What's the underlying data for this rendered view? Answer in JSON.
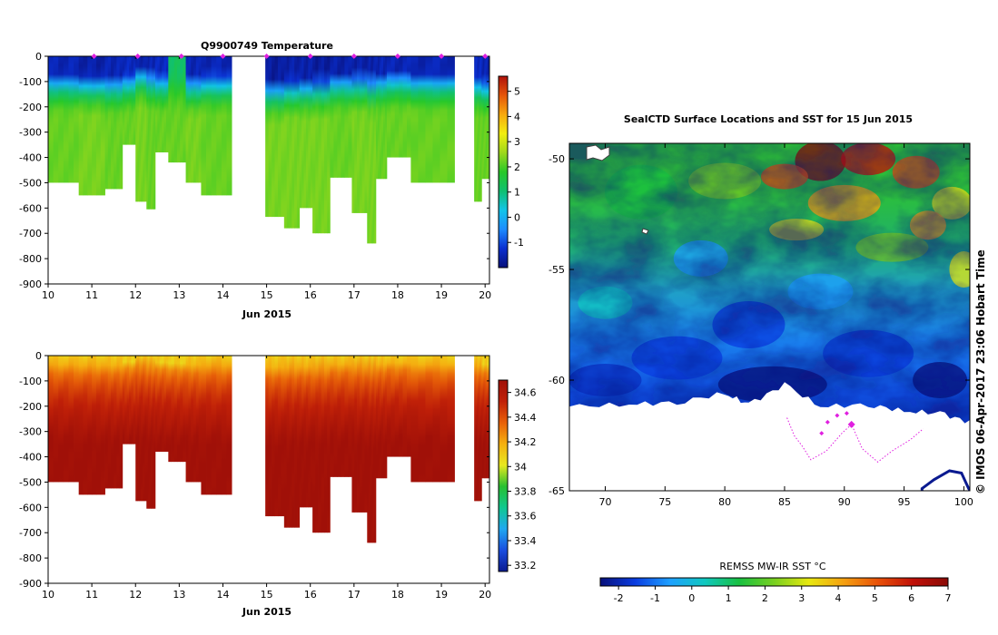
{
  "colors": {
    "temperature_scale": [
      "#08107a",
      "#0a2fd0",
      "#1e8cff",
      "#11c4e8",
      "#10c070",
      "#28c828",
      "#9ed81c",
      "#f2ee10",
      "#f7a90e",
      "#e6560a",
      "#b0120a"
    ],
    "salinity_scale": [
      "#0a1a90",
      "#1a4ee0",
      "#20a8f0",
      "#10c890",
      "#28c030",
      "#e8e820",
      "#f5b010",
      "#e86008",
      "#c02008",
      "#a01008"
    ],
    "sst_scale": [
      "#08107a",
      "#0a3ce0",
      "#1ea0ff",
      "#10c8c0",
      "#18c040",
      "#78d020",
      "#e8e810",
      "#f5a010",
      "#e85008",
      "#c01008",
      "#8a0a06"
    ],
    "profile_marker": "#e020e0"
  },
  "chart_data": [
    {
      "type": "heatmap",
      "title": "Q9900749  Temperature",
      "xlabel": "Jun 2015",
      "ylabel": "",
      "xlim": [
        10,
        20.1
      ],
      "ylim": [
        -900,
        0
      ],
      "x_ticks": [
        10,
        11,
        12,
        13,
        14,
        15,
        16,
        17,
        18,
        19,
        20
      ],
      "y_ticks": [
        0,
        -100,
        -200,
        -300,
        -400,
        -500,
        -600,
        -700,
        -800,
        -900
      ],
      "x_tick_labels": [
        "10",
        "11",
        "12",
        "13",
        "14",
        "15",
        "16",
        "17",
        "18",
        "19",
        "20"
      ],
      "y_tick_labels": [
        "0",
        "-100",
        "-200",
        "-300",
        "-400",
        "-500",
        "-600",
        "-700",
        "-800",
        "-900"
      ],
      "colorbar": {
        "range": [
          -2,
          5.6
        ],
        "ticks": [
          -1,
          0,
          1,
          2,
          3,
          4,
          5
        ],
        "labels": [
          "-1",
          "0",
          "1",
          "2",
          "3",
          "4",
          "5"
        ]
      },
      "profile_markers_days": [
        11.05,
        12.05,
        13.05,
        14.0,
        15.0,
        16.0,
        17.0,
        18.0,
        19.0,
        20.0
      ],
      "gaps_days": [
        [
          14.2,
          14.97
        ],
        [
          19.3,
          19.75
        ]
      ],
      "profiles": [
        {
          "x0": 10.0,
          "x1": 10.7,
          "max_depth": 500,
          "surface": -1.5,
          "mix_depth": 70,
          "deep": 2.2
        },
        {
          "x0": 10.7,
          "x1": 11.3,
          "max_depth": 550,
          "surface": -1.6,
          "mix_depth": 75,
          "deep": 2.3
        },
        {
          "x0": 11.3,
          "x1": 11.7,
          "max_depth": 525,
          "surface": -1.5,
          "mix_depth": 80,
          "deep": 2.2
        },
        {
          "x0": 11.7,
          "x1": 12.0,
          "max_depth": 350,
          "surface": -1.4,
          "mix_depth": 70,
          "deep": 2.2
        },
        {
          "x0": 12.0,
          "x1": 12.25,
          "max_depth": 575,
          "surface": -1.6,
          "mix_depth": 40,
          "deep": 2.3
        },
        {
          "x0": 12.25,
          "x1": 12.45,
          "max_depth": 605,
          "surface": -1.5,
          "mix_depth": 60,
          "deep": 2.2
        },
        {
          "x0": 12.45,
          "x1": 12.75,
          "max_depth": 380,
          "surface": -1.4,
          "mix_depth": 70,
          "deep": 2.2
        },
        {
          "x0": 12.75,
          "x1": 13.15,
          "max_depth": 420,
          "surface": 1.2,
          "mix_depth": 80,
          "deep": 2.2
        },
        {
          "x0": 13.15,
          "x1": 13.5,
          "max_depth": 500,
          "surface": -1.5,
          "mix_depth": 80,
          "deep": 2.3
        },
        {
          "x0": 13.5,
          "x1": 14.2,
          "max_depth": 550,
          "surface": -1.5,
          "mix_depth": 70,
          "deep": 2.2
        },
        {
          "x0": 14.97,
          "x1": 15.4,
          "max_depth": 635,
          "surface": -1.7,
          "mix_depth": 100,
          "deep": 2.3
        },
        {
          "x0": 15.4,
          "x1": 15.75,
          "max_depth": 680,
          "surface": -1.6,
          "mix_depth": 90,
          "deep": 2.3
        },
        {
          "x0": 15.75,
          "x1": 16.05,
          "max_depth": 600,
          "surface": -1.6,
          "mix_depth": 90,
          "deep": 2.3
        },
        {
          "x0": 16.05,
          "x1": 16.45,
          "max_depth": 700,
          "surface": -1.7,
          "mix_depth": 85,
          "deep": 2.3
        },
        {
          "x0": 16.45,
          "x1": 16.95,
          "max_depth": 480,
          "surface": -1.6,
          "mix_depth": 70,
          "deep": 2.2
        },
        {
          "x0": 16.95,
          "x1": 17.3,
          "max_depth": 620,
          "surface": -1.6,
          "mix_depth": 70,
          "deep": 2.3
        },
        {
          "x0": 17.3,
          "x1": 17.5,
          "max_depth": 740,
          "surface": -1.6,
          "mix_depth": 80,
          "deep": 2.3
        },
        {
          "x0": 17.5,
          "x1": 17.75,
          "max_depth": 485,
          "surface": -1.5,
          "mix_depth": 70,
          "deep": 2.2
        },
        {
          "x0": 17.75,
          "x1": 18.3,
          "max_depth": 400,
          "surface": -1.5,
          "mix_depth": 60,
          "deep": 2.2
        },
        {
          "x0": 18.3,
          "x1": 19.3,
          "max_depth": 500,
          "surface": -1.5,
          "mix_depth": 70,
          "deep": 2.2
        },
        {
          "x0": 19.75,
          "x1": 19.92,
          "max_depth": 575,
          "surface": -1.4,
          "mix_depth": 80,
          "deep": 2.2
        },
        {
          "x0": 19.92,
          "x1": 20.1,
          "max_depth": 485,
          "surface": -1.5,
          "mix_depth": 90,
          "deep": 2.2
        }
      ]
    },
    {
      "type": "heatmap",
      "title": "",
      "xlabel": "Jun 2015",
      "ylabel": "",
      "xlim": [
        10,
        20.1
      ],
      "ylim": [
        -900,
        0
      ],
      "x_ticks": [
        10,
        11,
        12,
        13,
        14,
        15,
        16,
        17,
        18,
        19,
        20
      ],
      "y_ticks": [
        0,
        -100,
        -200,
        -300,
        -400,
        -500,
        -600,
        -700,
        -800,
        -900
      ],
      "x_tick_labels": [
        "10",
        "11",
        "12",
        "13",
        "14",
        "15",
        "16",
        "17",
        "18",
        "19",
        "20"
      ],
      "y_tick_labels": [
        "0",
        "-100",
        "-200",
        "-300",
        "-400",
        "-500",
        "-600",
        "-700",
        "-800",
        "-900"
      ],
      "colorbar": {
        "range": [
          33.15,
          34.7
        ],
        "ticks": [
          33.2,
          33.4,
          33.6,
          33.8,
          34.0,
          34.2,
          34.4,
          34.6
        ],
        "labels": [
          "33.2",
          "33.4",
          "33.6",
          "33.8",
          "34",
          "34.2",
          "34.4",
          "34.6"
        ]
      },
      "surface_salinity_typical": 34.1,
      "deep_salinity_typical": 34.7
    },
    {
      "type": "heatmap",
      "title": "SealCTD Surface Locations and SST for 15 Jun 2015",
      "xlabel": "",
      "ylabel": "",
      "xlim": [
        67,
        100.5
      ],
      "ylim": [
        -65,
        -49.3
      ],
      "x_ticks": [
        70,
        75,
        80,
        85,
        90,
        95,
        100
      ],
      "y_ticks": [
        -50,
        -55,
        -60,
        -65
      ],
      "x_tick_labels": [
        "70",
        "75",
        "80",
        "85",
        "90",
        "95",
        "100"
      ],
      "y_tick_labels": [
        "-50",
        "-55",
        "-60",
        "-65"
      ],
      "colorbar": {
        "label": "REMSS MW-IR SST °C",
        "range": [
          -2.5,
          7
        ],
        "ticks": [
          -2,
          -1,
          0,
          1,
          2,
          3,
          4,
          5,
          6,
          7
        ],
        "labels": [
          "-2",
          "-1",
          "0",
          "1",
          "2",
          "3",
          "4",
          "5",
          "6",
          "7"
        ]
      },
      "ice_edge": [
        [
          67,
          -61.2
        ],
        [
          72,
          -61.1
        ],
        [
          76,
          -61.0
        ],
        [
          80,
          -60.6
        ],
        [
          82,
          -61.1
        ],
        [
          85,
          -60.2
        ],
        [
          88,
          -61.2
        ],
        [
          92,
          -61.1
        ],
        [
          95,
          -61.4
        ],
        [
          98,
          -61.5
        ],
        [
          100.5,
          -61.9
        ]
      ],
      "seal_track_lon_lat": [
        [
          85.2,
          -61.7
        ],
        [
          85.8,
          -62.5
        ],
        [
          86.5,
          -63.0
        ],
        [
          87.2,
          -63.6
        ],
        [
          88.5,
          -63.2
        ],
        [
          89.8,
          -62.4
        ],
        [
          90.6,
          -62.0
        ],
        [
          91.5,
          -63.1
        ],
        [
          92.8,
          -63.7
        ],
        [
          94.0,
          -63.2
        ],
        [
          95.5,
          -62.7
        ],
        [
          96.6,
          -62.2
        ]
      ],
      "seal_surface_points_lon_lat": [
        [
          88.1,
          -62.4
        ],
        [
          88.6,
          -61.9
        ],
        [
          89.4,
          -61.6
        ],
        [
          90.2,
          -61.5
        ],
        [
          90.6,
          -62.0
        ]
      ],
      "antarctic_coast_lon_lat": [
        [
          96.5,
          -64.9
        ],
        [
          97.5,
          -64.5
        ],
        [
          98.8,
          -64.1
        ],
        [
          99.8,
          -64.2
        ],
        [
          100.4,
          -64.9
        ]
      ]
    }
  ],
  "credit": "© IMOS 06-Apr-2017 23:06 Hobart Time"
}
